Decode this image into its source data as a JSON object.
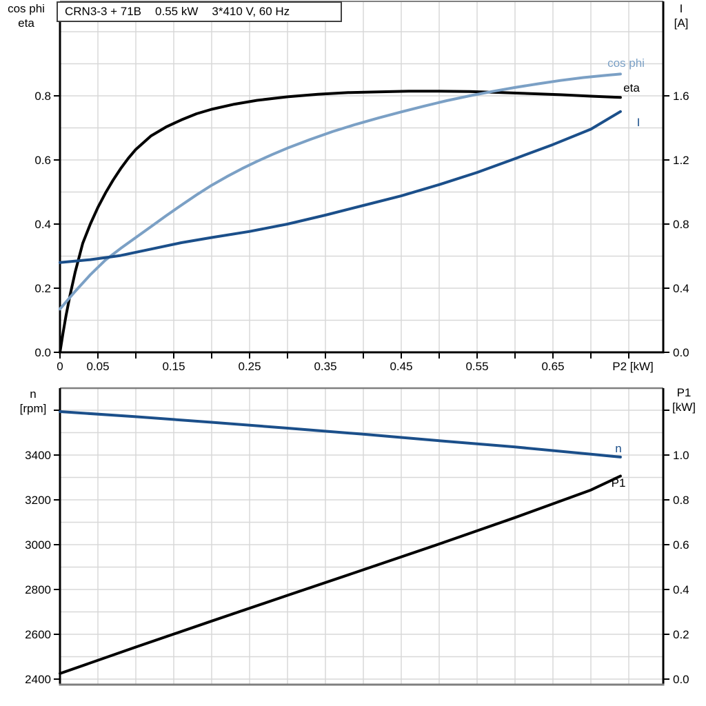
{
  "title": {
    "segments": [
      "CRN3-3 + 71B",
      "0.55 kW",
      "3*410 V, 60 Hz"
    ]
  },
  "colors": {
    "curve_black": "#000000",
    "curve_dark_blue": "#1b4f8a",
    "curve_light_blue": "#7ba0c5",
    "grid": "#d8d8d8",
    "frame_gray": "#7f7f7f",
    "axis_black": "#000000",
    "text": "#000000"
  },
  "chart_data": [
    {
      "id": "upper",
      "type": "line",
      "title": "CRN3-3 + 71B  0.55 kW  3*410 V, 60 Hz",
      "x_axis": {
        "label": "P2 [kW]",
        "min": 0,
        "max": 0.795,
        "grid_step": 0.05,
        "ticks_all": [
          0,
          0.05,
          0.1,
          0.15,
          0.2,
          0.25,
          0.3,
          0.35,
          0.4,
          0.45,
          0.5,
          0.55,
          0.6,
          0.65,
          0.7,
          0.75
        ],
        "labeled_ticks": [
          {
            "v": 0,
            "t": "0"
          },
          {
            "v": 0.05,
            "t": "0.05"
          },
          {
            "v": 0.15,
            "t": "0.15"
          },
          {
            "v": 0.25,
            "t": "0.25"
          },
          {
            "v": 0.35,
            "t": "0.35"
          },
          {
            "v": 0.45,
            "t": "0.45"
          },
          {
            "v": 0.55,
            "t": "0.55"
          },
          {
            "v": 0.65,
            "t": "0.65"
          }
        ]
      },
      "y_left": {
        "label_lines": [
          "cos phi",
          "eta"
        ],
        "min": 0,
        "max": 1.095,
        "grid_step": 0.1,
        "ticks_all": [
          0,
          0.2,
          0.4,
          0.6,
          0.8
        ],
        "tick_labels": [
          "0.0",
          "0.2",
          "0.4",
          "0.6",
          "0.8"
        ]
      },
      "y_right": {
        "label_lines": [
          "I",
          "[A]"
        ],
        "min": 0,
        "max": 2.19,
        "ticks_all": [
          0,
          0.4,
          0.8,
          1.2,
          1.6
        ],
        "tick_labels": [
          "0.0",
          "0.4",
          "0.8",
          "1.2",
          "1.6"
        ]
      },
      "series": [
        {
          "name": "eta",
          "label": "eta",
          "axis": "left",
          "color_key": "curve_black",
          "points": [
            [
              0,
              0
            ],
            [
              0.004,
              0.06
            ],
            [
              0.008,
              0.115
            ],
            [
              0.013,
              0.175
            ],
            [
              0.02,
              0.25
            ],
            [
              0.03,
              0.34
            ],
            [
              0.04,
              0.4
            ],
            [
              0.05,
              0.452
            ],
            [
              0.06,
              0.497
            ],
            [
              0.07,
              0.537
            ],
            [
              0.08,
              0.573
            ],
            [
              0.09,
              0.605
            ],
            [
              0.1,
              0.633
            ],
            [
              0.12,
              0.675
            ],
            [
              0.14,
              0.703
            ],
            [
              0.16,
              0.725
            ],
            [
              0.18,
              0.744
            ],
            [
              0.2,
              0.758
            ],
            [
              0.23,
              0.774
            ],
            [
              0.26,
              0.786
            ],
            [
              0.3,
              0.797
            ],
            [
              0.34,
              0.805
            ],
            [
              0.38,
              0.81
            ],
            [
              0.42,
              0.8125
            ],
            [
              0.46,
              0.8145
            ],
            [
              0.5,
              0.8145
            ],
            [
              0.54,
              0.8135
            ],
            [
              0.58,
              0.8105
            ],
            [
              0.62,
              0.807
            ],
            [
              0.66,
              0.8035
            ],
            [
              0.7,
              0.799
            ],
            [
              0.739,
              0.795
            ]
          ]
        },
        {
          "name": "cos phi",
          "label": "cos phi",
          "axis": "left",
          "color_key": "curve_light_blue",
          "points": [
            [
              0,
              0.135
            ],
            [
              0.02,
              0.19
            ],
            [
              0.04,
              0.242
            ],
            [
              0.06,
              0.288
            ],
            [
              0.08,
              0.324
            ],
            [
              0.1,
              0.358
            ],
            [
              0.12,
              0.392
            ],
            [
              0.14,
              0.426
            ],
            [
              0.16,
              0.459
            ],
            [
              0.18,
              0.491
            ],
            [
              0.2,
              0.521
            ],
            [
              0.22,
              0.548
            ],
            [
              0.24,
              0.573
            ],
            [
              0.26,
              0.596
            ],
            [
              0.28,
              0.617
            ],
            [
              0.3,
              0.637
            ],
            [
              0.33,
              0.664
            ],
            [
              0.36,
              0.689
            ],
            [
              0.39,
              0.711
            ],
            [
              0.42,
              0.731
            ],
            [
              0.45,
              0.75
            ],
            [
              0.48,
              0.768
            ],
            [
              0.51,
              0.785
            ],
            [
              0.54,
              0.8
            ],
            [
              0.57,
              0.8135
            ],
            [
              0.6,
              0.826
            ],
            [
              0.63,
              0.8375
            ],
            [
              0.66,
              0.848
            ],
            [
              0.69,
              0.857
            ],
            [
              0.72,
              0.864
            ],
            [
              0.739,
              0.868
            ]
          ]
        },
        {
          "name": "I",
          "label": "I",
          "axis": "right",
          "color_key": "curve_dark_blue",
          "points": [
            [
              0,
              0.56
            ],
            [
              0.04,
              0.578
            ],
            [
              0.08,
              0.604
            ],
            [
              0.12,
              0.644
            ],
            [
              0.16,
              0.684
            ],
            [
              0.2,
              0.716
            ],
            [
              0.25,
              0.754
            ],
            [
              0.3,
              0.8
            ],
            [
              0.35,
              0.856
            ],
            [
              0.4,
              0.916
            ],
            [
              0.45,
              0.976
            ],
            [
              0.5,
              1.046
            ],
            [
              0.55,
              1.122
            ],
            [
              0.6,
              1.208
            ],
            [
              0.65,
              1.296
            ],
            [
              0.7,
              1.392
            ],
            [
              0.739,
              1.502
            ]
          ]
        }
      ]
    },
    {
      "id": "lower",
      "type": "line",
      "x_axis": {
        "label": "",
        "shared_with_upper": true,
        "min": 0,
        "max": 0.795,
        "grid_step": 0.05
      },
      "y_left": {
        "label_lines": [
          "n",
          "[rpm]"
        ],
        "min": 2375,
        "max": 3698,
        "grid_step": 100,
        "ticks_all": [
          2400,
          2600,
          2800,
          3000,
          3200,
          3400,
          3600
        ],
        "tick_labels": [
          "2400",
          "2600",
          "2800",
          "3000",
          "3200",
          "3400",
          ""
        ]
      },
      "y_right": {
        "label_lines": [
          "P1",
          "[kW]"
        ],
        "min": -0.025,
        "max": 1.3,
        "ticks_all": [
          0,
          0.2,
          0.4,
          0.6,
          0.8,
          1,
          1.2
        ],
        "tick_labels": [
          "0.0",
          "0.2",
          "0.4",
          "0.6",
          "0.8",
          "1.0",
          ""
        ]
      },
      "series": [
        {
          "name": "n",
          "label": "n",
          "axis": "left",
          "color_key": "curve_dark_blue",
          "points": [
            [
              0,
              3594
            ],
            [
              0.1,
              3571
            ],
            [
              0.2,
              3546
            ],
            [
              0.3,
              3520
            ],
            [
              0.4,
              3493
            ],
            [
              0.5,
              3464
            ],
            [
              0.6,
              3436
            ],
            [
              0.7,
              3404
            ],
            [
              0.739,
              3391
            ]
          ]
        },
        {
          "name": "P1",
          "label": "P1",
          "axis": "right",
          "color_key": "curve_black",
          "points": [
            [
              0,
              0.025
            ],
            [
              0.1,
              0.143
            ],
            [
              0.2,
              0.259
            ],
            [
              0.3,
              0.374
            ],
            [
              0.4,
              0.488
            ],
            [
              0.5,
              0.603
            ],
            [
              0.6,
              0.721
            ],
            [
              0.7,
              0.844
            ],
            [
              0.739,
              0.906
            ]
          ]
        }
      ]
    }
  ]
}
